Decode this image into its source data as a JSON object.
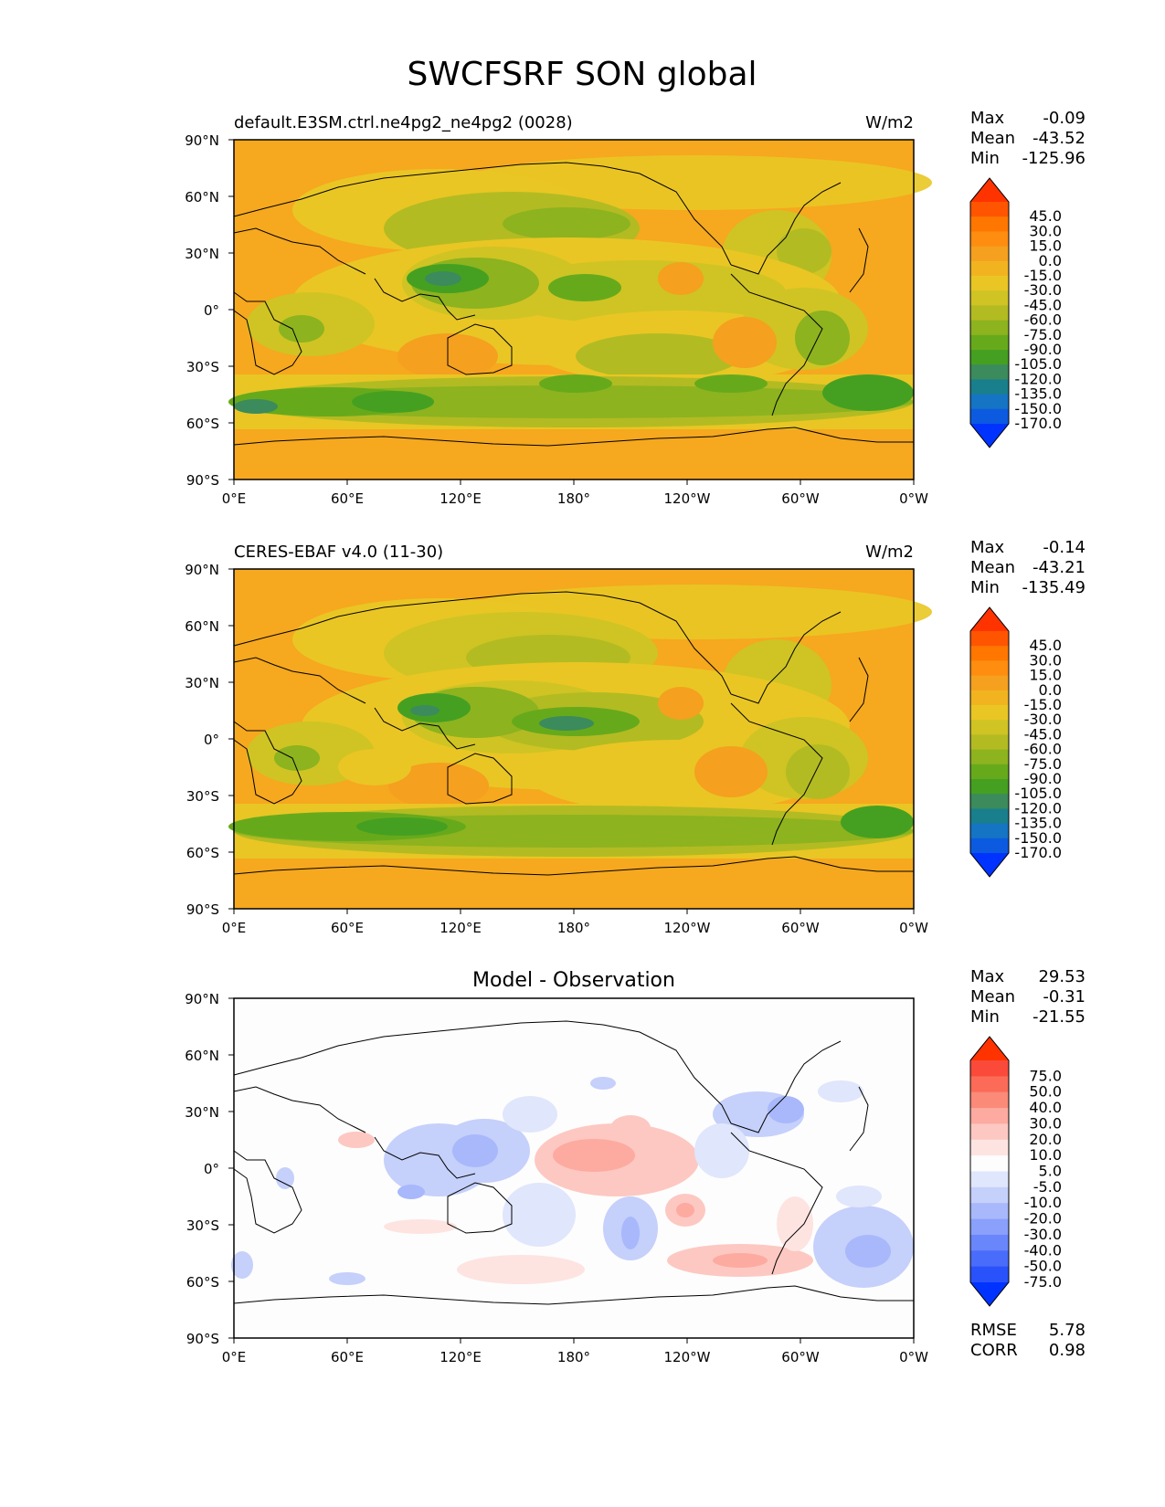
{
  "title": "SWCFSRF SON global",
  "colors": {
    "ocean_base": "#f6a81e",
    "diff_base": "#fdfdfd",
    "coast": "#000000"
  },
  "lat_ticks": [
    "90°N",
    "60°N",
    "30°N",
    "0°",
    "30°S",
    "60°S",
    "90°S"
  ],
  "lon_ticks": [
    "0°E",
    "60°E",
    "120°E",
    "180°",
    "120°W",
    "60°W",
    "0°W"
  ],
  "panels": [
    {
      "id": "model",
      "left_title": "default.E3SM.ctrl.ne4pg2_ne4pg2 (0028)",
      "center_title": "",
      "units": "W/m2",
      "stats": [
        {
          "label": "Max",
          "value": "-0.09"
        },
        {
          "label": "Mean",
          "value": "-43.52"
        },
        {
          "label": "Min",
          "value": "-125.96"
        }
      ],
      "colorbar": {
        "labels": [
          "45.0",
          "30.0",
          "15.0",
          "0.0",
          "-15.0",
          "-30.0",
          "-45.0",
          "-60.0",
          "-75.0",
          "-90.0",
          "-105.0",
          "-120.0",
          "-135.0",
          "-150.0",
          "-170.0"
        ],
        "colors": [
          "#ff3300",
          "#ff5500",
          "#ff7700",
          "#ff8d10",
          "#f5a01f",
          "#f1b420",
          "#e9c624",
          "#cfc423",
          "#b3bb22",
          "#8db31f",
          "#66aa1c",
          "#45a021",
          "#3b8b5c",
          "#1a7f8c",
          "#1574c4",
          "#0c5ae0",
          "#0033ff"
        ]
      },
      "base_color": "#f6a81e"
    },
    {
      "id": "obs",
      "left_title": "CERES-EBAF v4.0 (11-30)",
      "center_title": "",
      "units": "W/m2",
      "stats": [
        {
          "label": "Max",
          "value": "-0.14"
        },
        {
          "label": "Mean",
          "value": "-43.21"
        },
        {
          "label": "Min",
          "value": "-135.49"
        }
      ],
      "colorbar": {
        "labels": [
          "45.0",
          "30.0",
          "15.0",
          "0.0",
          "-15.0",
          "-30.0",
          "-45.0",
          "-60.0",
          "-75.0",
          "-90.0",
          "-105.0",
          "-120.0",
          "-135.0",
          "-150.0",
          "-170.0"
        ],
        "colors": [
          "#ff3300",
          "#ff5500",
          "#ff7700",
          "#ff8d10",
          "#f5a01f",
          "#f1b420",
          "#e9c624",
          "#cfc423",
          "#b3bb22",
          "#8db31f",
          "#66aa1c",
          "#45a021",
          "#3b8b5c",
          "#1a7f8c",
          "#1574c4",
          "#0c5ae0",
          "#0033ff"
        ]
      },
      "base_color": "#f6a81e"
    },
    {
      "id": "diff",
      "left_title": "",
      "center_title": "Model - Observation",
      "units": "",
      "stats": [
        {
          "label": "Max",
          "value": "29.53"
        },
        {
          "label": "Mean",
          "value": "-0.31"
        },
        {
          "label": "Min",
          "value": "-21.55"
        }
      ],
      "colorbar": {
        "labels": [
          "75.0",
          "50.0",
          "40.0",
          "30.0",
          "20.0",
          "10.0",
          "5.0",
          "-5.0",
          "-10.0",
          "-20.0",
          "-30.0",
          "-40.0",
          "-50.0",
          "-75.0"
        ],
        "colors": [
          "#ff3300",
          "#fb4a3a",
          "#fb6b58",
          "#fb8a78",
          "#fdaaa0",
          "#fdc8c2",
          "#fde4e1",
          "#fdfdfd",
          "#e0e6fb",
          "#c5d0fb",
          "#a8b8fb",
          "#8aa0fb",
          "#6a86fb",
          "#4a6cfb",
          "#2a52fb",
          "#0033ff"
        ]
      },
      "base_color": "#fdfdfd",
      "rmse": {
        "label": "RMSE",
        "value": "5.78"
      },
      "corr": {
        "label": "CORR",
        "value": "0.98"
      }
    }
  ]
}
